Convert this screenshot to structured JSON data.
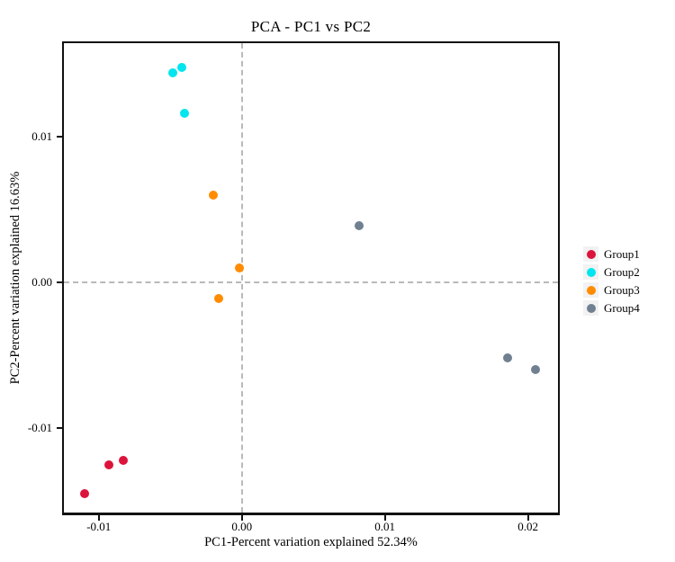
{
  "title": "PCA - PC1 vs PC2",
  "colors": {
    "frame": "#111111",
    "reference_line": "#b9b9b9",
    "legend_key_background": "#f2f2f2",
    "group1": "#dc143c",
    "group2": "#00e5ee",
    "group3": "#ff8c00",
    "group4": "#708090"
  },
  "chart_data": {
    "type": "scatter",
    "title": "PCA - PC1 vs PC2",
    "xlabel": "PC1-Percent variation explained 52.34%",
    "ylabel": "PC2-Percent variation explained 16.63%",
    "xlim": [
      -0.0125,
      0.0221
    ],
    "ylim": [
      -0.0158,
      0.0165
    ],
    "x_ticks": [
      -0.01,
      0.0,
      0.01,
      0.02
    ],
    "x_tick_labels": [
      "-0.01",
      "0.00",
      "0.01",
      "0.02"
    ],
    "y_ticks": [
      0.01,
      0.0,
      -0.01
    ],
    "y_tick_labels": [
      "0.01",
      "0.00",
      "-0.01"
    ],
    "grid": false,
    "reference_lines": [
      {
        "orientation": "vertical",
        "at": 0.0,
        "style": "dashed"
      },
      {
        "orientation": "horizontal",
        "at": 0.0,
        "style": "dashed"
      }
    ],
    "legend_position": "right-center",
    "series": [
      {
        "name": "Group1",
        "color": "#dc143c",
        "points": [
          [
            -0.011,
            -0.0145
          ],
          [
            -0.0093,
            -0.0125
          ],
          [
            -0.0083,
            -0.0122
          ]
        ]
      },
      {
        "name": "Group2",
        "color": "#00e5ee",
        "points": [
          [
            -0.0048,
            0.0144
          ],
          [
            -0.0042,
            0.0148
          ],
          [
            -0.004,
            0.0116
          ]
        ]
      },
      {
        "name": "Group3",
        "color": "#ff8c00",
        "points": [
          [
            -0.002,
            0.006
          ],
          [
            -0.0002,
            0.001
          ],
          [
            -0.0016,
            -0.0011
          ]
        ]
      },
      {
        "name": "Group4",
        "color": "#708090",
        "points": [
          [
            0.0082,
            0.0039
          ],
          [
            0.0186,
            -0.0052
          ],
          [
            0.0205,
            -0.006
          ]
        ]
      }
    ]
  }
}
